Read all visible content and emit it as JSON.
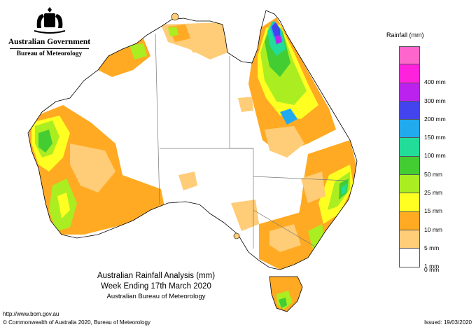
{
  "header": {
    "government": "Australian Government",
    "bureau": "Bureau of Meteorology"
  },
  "map": {
    "title_line1": "Australian Rainfall Analysis (mm)",
    "title_line2": "Week Ending 17th March 2020",
    "title_line3": "Australian Bureau of Meteorology"
  },
  "footer": {
    "url": "http://www.bom.gov.au",
    "copyright": "© Commonwealth of Australia 2020, Bureau of Meteorology",
    "issued": "Issued: 19/03/2020"
  },
  "legend": {
    "title": "Rainfall (mm)",
    "bins": [
      {
        "color": "#ff66cc",
        "label": ""
      },
      {
        "color": "#ff22dd",
        "label": "400 mm"
      },
      {
        "color": "#bb22ee",
        "label": "300 mm"
      },
      {
        "color": "#4444ee",
        "label": "200 mm"
      },
      {
        "color": "#22aaee",
        "label": "150 mm"
      },
      {
        "color": "#22dd99",
        "label": "100 mm"
      },
      {
        "color": "#44cc33",
        "label": "50 mm"
      },
      {
        "color": "#aaee22",
        "label": "25 mm"
      },
      {
        "color": "#ffff22",
        "label": "15 mm"
      },
      {
        "color": "#ffaa22",
        "label": "10 mm"
      },
      {
        "color": "#ffcc77",
        "label": "5 mm"
      },
      {
        "color": "#ffffff",
        "label": "1 mm"
      }
    ],
    "bottom_label": "0 mm"
  },
  "colors": {
    "land": "#ffffff",
    "outline": "#000000",
    "border": "#777777"
  }
}
